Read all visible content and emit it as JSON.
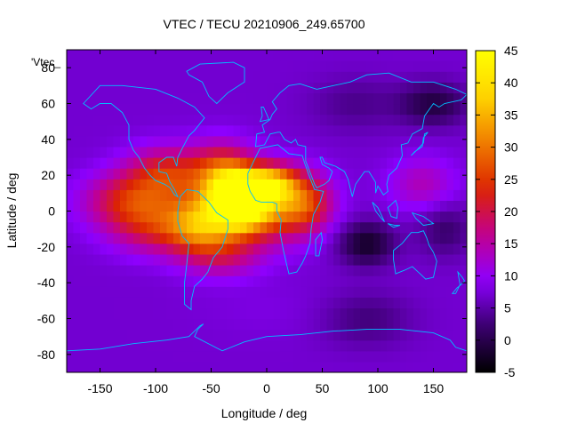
{
  "chart_data": {
    "type": "heatmap",
    "title": "VTEC / TECU 20210906_249.65700",
    "xlabel": "Longitude / deg",
    "ylabel": "Latitude / deg",
    "series_label": "'Vtec_",
    "xlim": [
      -180,
      180
    ],
    "ylim": [
      -90,
      90
    ],
    "x_ticks": [
      -150,
      -100,
      -50,
      0,
      50,
      100,
      150
    ],
    "y_ticks": [
      -80,
      -60,
      -40,
      -20,
      0,
      20,
      40,
      60,
      80
    ],
    "colorbar": {
      "range": [
        -5,
        45
      ],
      "ticks": [
        -5,
        0,
        5,
        10,
        15,
        20,
        25,
        30,
        35,
        40,
        45
      ],
      "palette": [
        "#000000",
        "#3a006e",
        "#8d00ff",
        "#c2008e",
        "#dc2400",
        "#f07d00",
        "#ffd400",
        "#ffff00"
      ]
    },
    "grid": false,
    "background_tecu": 7,
    "features": [
      {
        "lon": -25,
        "lat": 8,
        "value": 44,
        "rlon": 22,
        "rlat": 14
      },
      {
        "lon": -15,
        "lat": 2,
        "value": 40,
        "rlon": 45,
        "rlat": 18
      },
      {
        "lon": 5,
        "lat": 16,
        "value": 32,
        "rlon": 22,
        "rlat": 10
      },
      {
        "lon": -60,
        "lat": -8,
        "value": 28,
        "rlon": 30,
        "rlat": 15
      },
      {
        "lon": -120,
        "lat": 6,
        "value": 26,
        "rlon": 42,
        "rlat": 15
      },
      {
        "lon": -90,
        "lat": 22,
        "value": 24,
        "rlon": 35,
        "rlat": 14
      },
      {
        "lon": -40,
        "lat": 22,
        "value": 26,
        "rlon": 28,
        "rlat": 16
      },
      {
        "lon": 35,
        "lat": 5,
        "value": 24,
        "rlon": 24,
        "rlat": 16
      },
      {
        "lon": -100,
        "lat": -10,
        "value": 20,
        "rlon": 40,
        "rlat": 14
      },
      {
        "lon": -40,
        "lat": -25,
        "value": 17,
        "rlon": 35,
        "rlat": 12
      },
      {
        "lon": 140,
        "lat": 15,
        "value": 15,
        "rlon": 30,
        "rlat": 15
      },
      {
        "lon": 0,
        "lat": -55,
        "value": 8,
        "rlon": 60,
        "rlat": 15
      },
      {
        "lon": 90,
        "lat": -18,
        "value": -4,
        "rlon": 25,
        "rlat": 12
      },
      {
        "lon": 150,
        "lat": 60,
        "value": -2,
        "rlon": 30,
        "rlat": 12
      },
      {
        "lon": 160,
        "lat": -10,
        "value": 1,
        "rlon": 25,
        "rlat": 15
      },
      {
        "lon": 80,
        "lat": 60,
        "value": 3,
        "rlon": 40,
        "rlat": 15
      },
      {
        "lon": 90,
        "lat": -60,
        "value": 2,
        "rlon": 40,
        "rlat": 15
      }
    ]
  }
}
